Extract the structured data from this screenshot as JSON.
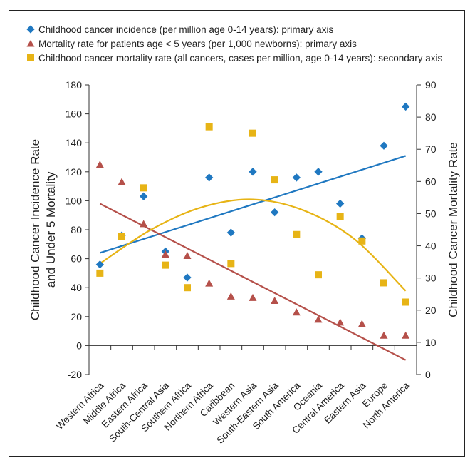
{
  "chart_data": {
    "type": "scatter",
    "categories": [
      "Western Africa",
      "Middle Africa",
      "Eastern Africa",
      "South-Central Asia",
      "Southern Africa",
      "Northern Africa",
      "Caribbean",
      "Western Asia",
      "South-Eastern Asia",
      "South America",
      "Oceania",
      "Central America",
      "Eastern Asia",
      "Europe",
      "North America"
    ],
    "series": [
      {
        "name": "Childhood cancer incidence (per million age 0-14 years): primary axis",
        "axis": "primary",
        "marker": "diamond",
        "color": "#1f78c1",
        "values": [
          56,
          76,
          103,
          65,
          47,
          116,
          78,
          120,
          92,
          116,
          120,
          98,
          74,
          138,
          165
        ]
      },
      {
        "name": "Mortality rate for patients age < 5 years (per 1,000 newborns): primary axis",
        "axis": "primary",
        "marker": "triangle",
        "color": "#b5504a",
        "values": [
          125,
          113,
          84,
          63,
          62,
          43,
          34,
          33,
          31,
          23,
          18,
          16,
          15,
          7,
          7
        ]
      },
      {
        "name": "Childhood cancer mortality rate (all cancers, cases per million, age 0-14 years): secondary axis",
        "axis": "secondary",
        "marker": "square",
        "color": "#e7b416",
        "values": [
          31.5,
          43,
          58,
          34,
          27,
          77,
          34.5,
          75,
          60.5,
          43.5,
          31,
          49,
          41.5,
          28.5,
          22.5
        ]
      }
    ],
    "trendlines": [
      {
        "series": 0,
        "kind": "linear",
        "color": "#1f78c1",
        "values": [
          64,
          131
        ]
      },
      {
        "series": 1,
        "kind": "linear",
        "color": "#b5504a",
        "values": [
          98,
          -10
        ]
      },
      {
        "series": 2,
        "kind": "polynomial",
        "axis": "secondary",
        "color": "#e7b416",
        "values": [
          34.5,
          45,
          52,
          54.4,
          51,
          42,
          26
        ]
      }
    ],
    "ylabel": "Childhood Cancer Incidence Rate and Under 5 Mortality",
    "y2label": "Childhood Cancer Mortality Rate",
    "ylim": [
      -20,
      180
    ],
    "y2lim": [
      0,
      90
    ],
    "yticks": [
      -20,
      0,
      20,
      40,
      60,
      80,
      100,
      120,
      140,
      160,
      180
    ],
    "y2ticks": [
      0,
      10,
      20,
      30,
      40,
      50,
      60,
      70,
      80,
      90
    ],
    "legend_position": "top",
    "grid": false
  }
}
